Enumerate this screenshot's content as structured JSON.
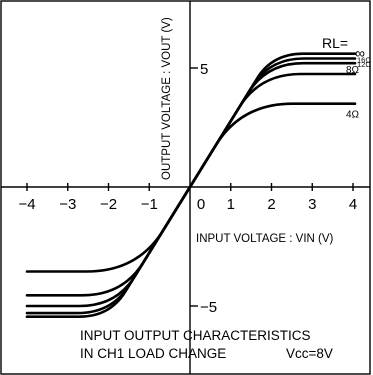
{
  "chart_data": {
    "type": "line",
    "title": "INPUT OUTPUT CHARACTERISTICS",
    "subtitle": "IN CH1 LOAD CHANGE",
    "condition": "Vcc=8V",
    "xlabel": "INPUT VOLTAGE : VIN (V)",
    "ylabel": "OUTPUT VOLTAGE : VOUT (V)",
    "xlim": [
      -4.5,
      4.5
    ],
    "ylim": [
      -6.5,
      8
    ],
    "x_ticks": [
      -4,
      -3,
      -2,
      -1,
      0,
      1,
      2,
      3,
      4
    ],
    "x_tick_labels": [
      "−4",
      "−3",
      "−2",
      "−1",
      "0",
      "1",
      "2",
      "3",
      "4"
    ],
    "y_ticks": [
      5,
      -5
    ],
    "y_tick_labels": [
      "5",
      "−5"
    ],
    "legend_title": "RL=",
    "grid": false,
    "slope": 2.77,
    "series": [
      {
        "name": "∞",
        "sat_pos": 5.6,
        "sat_neg": -5.45,
        "knee": 0.75
      },
      {
        "name": "16Ω",
        "sat_pos": 5.4,
        "sat_neg": -5.3,
        "knee": 0.85
      },
      {
        "name": "12Ω",
        "sat_pos": 5.2,
        "sat_neg": -5.0,
        "knee": 0.9
      },
      {
        "name": "8Ω",
        "sat_pos": 4.75,
        "sat_neg": -4.55,
        "knee": 1.0
      },
      {
        "name": "4Ω",
        "sat_pos": 3.5,
        "sat_neg": -3.55,
        "knee": 1.25
      }
    ]
  }
}
